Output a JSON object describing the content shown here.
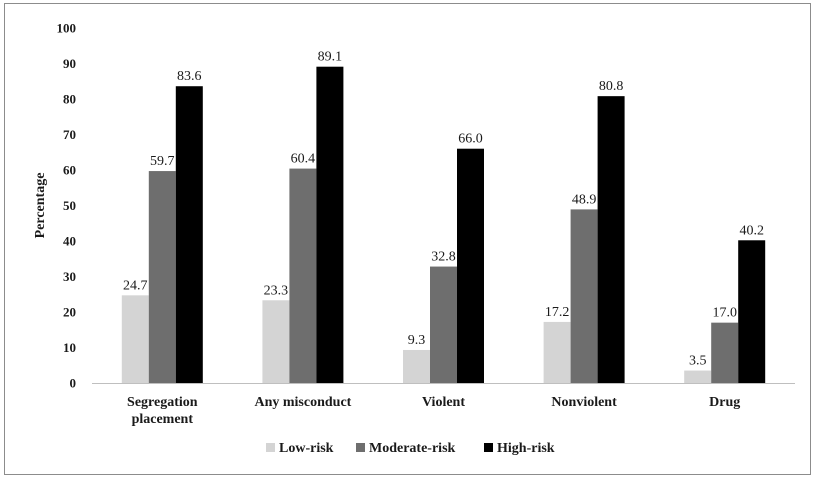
{
  "chart_data": {
    "type": "bar",
    "title": "",
    "xlabel": "",
    "ylabel": "Percentage",
    "ylim": [
      0,
      100
    ],
    "yticks": [
      0,
      10,
      20,
      30,
      40,
      50,
      60,
      70,
      80,
      90,
      100
    ],
    "categories": [
      [
        "Segregation",
        "placement"
      ],
      [
        "Any misconduct"
      ],
      [
        "Violent"
      ],
      [
        "Nonviolent"
      ],
      [
        "Drug"
      ]
    ],
    "series": [
      {
        "name": "Low-risk",
        "color": "#d4d4d4",
        "values": [
          24.7,
          23.3,
          9.3,
          17.2,
          3.5
        ],
        "labels": [
          "24.7",
          "23.3",
          "9.3",
          "17.2",
          "3.5"
        ]
      },
      {
        "name": "Moderate-risk",
        "color": "#6e6e6e",
        "values": [
          59.7,
          60.4,
          32.8,
          48.9,
          17.0
        ],
        "labels": [
          "59.7",
          "60.4",
          "32.8",
          "48.9",
          "17.0"
        ]
      },
      {
        "name": "High-risk",
        "color": "#000000",
        "values": [
          83.6,
          89.1,
          66.0,
          80.8,
          40.2
        ],
        "labels": [
          "83.6",
          "89.1",
          "66.0",
          "80.8",
          "40.2"
        ]
      }
    ],
    "grid": false,
    "legend": "bottom"
  }
}
